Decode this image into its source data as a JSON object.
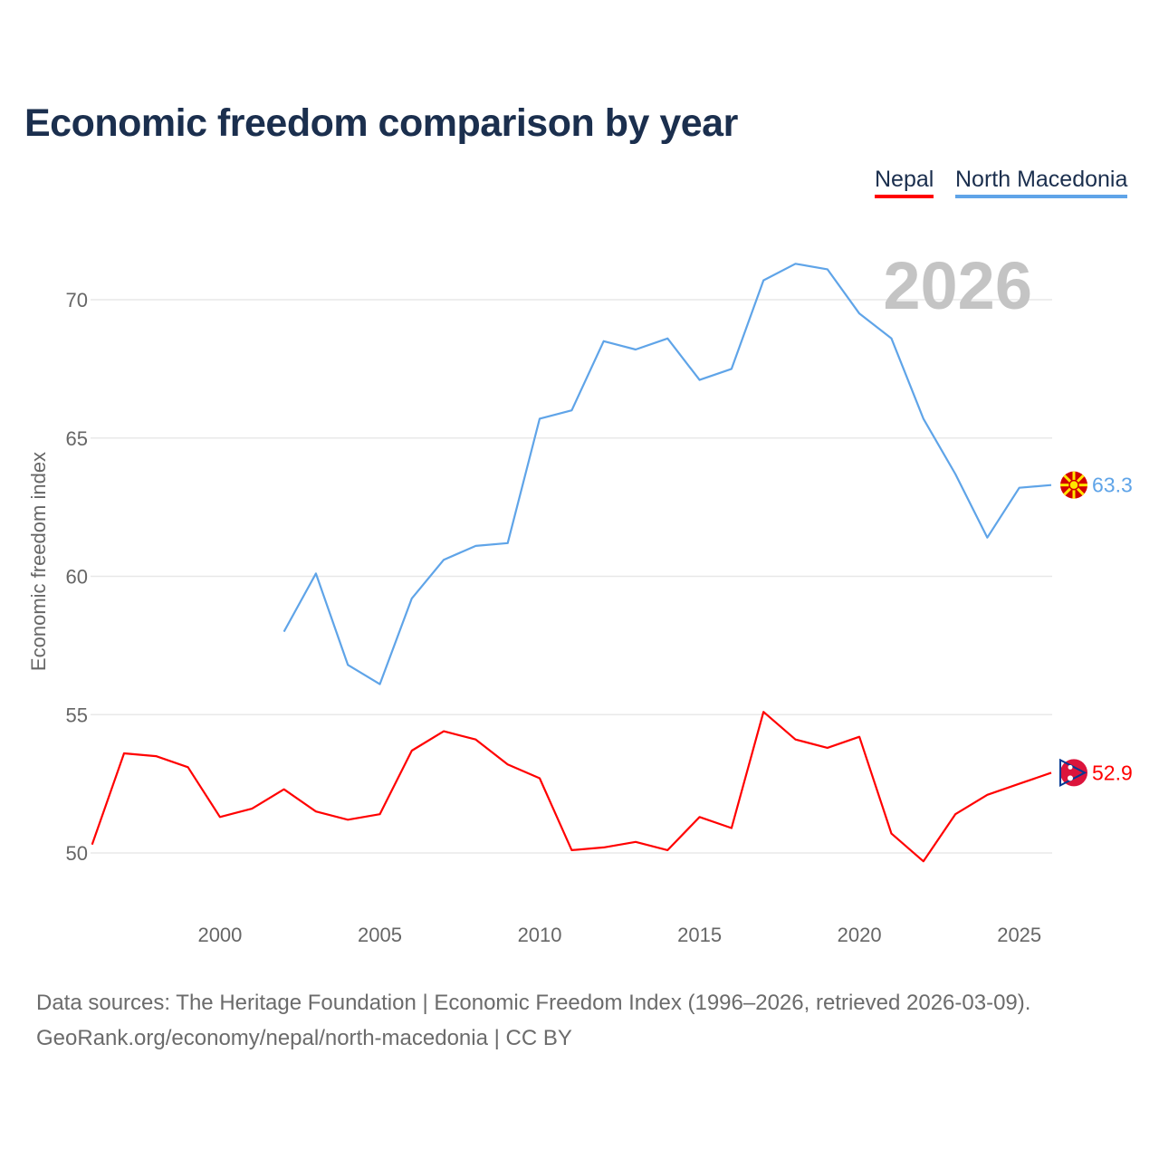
{
  "title": "Economic freedom comparison by year",
  "legend": [
    {
      "name": "Nepal",
      "color": "#ff0000"
    },
    {
      "name": "North Macedonia",
      "color": "#5fa4e8"
    }
  ],
  "footer": {
    "line1": "Data sources: The Heritage Foundation | Economic Freedom Index (1996–2026, retrieved 2026-03-09).",
    "line2": "GeoRank.org/economy/nepal/north-macedonia | CC BY"
  },
  "chart_data": {
    "type": "line",
    "title": "Economic freedom comparison by year",
    "xlabel": "",
    "ylabel": "Economic freedom index",
    "year_watermark": "2026",
    "xlim": [
      1996,
      2026
    ],
    "ylim": [
      47.9,
      72.6
    ],
    "xticks": [
      2000,
      2005,
      2010,
      2015,
      2020,
      2025
    ],
    "yticks": [
      50,
      55,
      60,
      65,
      70
    ],
    "grid": true,
    "legend_position": "top-right",
    "series": [
      {
        "name": "Nepal",
        "color": "#ff0000",
        "end_label": "52.9",
        "flag": "nepal-flag",
        "x": [
          1996,
          1997,
          1998,
          1999,
          2000,
          2001,
          2002,
          2003,
          2004,
          2005,
          2006,
          2007,
          2008,
          2009,
          2010,
          2011,
          2012,
          2013,
          2014,
          2015,
          2016,
          2017,
          2018,
          2019,
          2020,
          2021,
          2022,
          2023,
          2024,
          2025,
          2026
        ],
        "values": [
          50.3,
          53.6,
          53.5,
          53.1,
          51.3,
          51.6,
          52.3,
          51.5,
          51.2,
          51.4,
          53.7,
          54.4,
          54.1,
          53.2,
          52.7,
          50.1,
          50.2,
          50.4,
          50.1,
          51.3,
          50.9,
          55.1,
          54.1,
          53.8,
          54.2,
          50.7,
          49.7,
          51.4,
          52.1,
          52.5,
          52.9
        ]
      },
      {
        "name": "North Macedonia",
        "color": "#5fa4e8",
        "end_label": "63.3",
        "flag": "north-macedonia-flag",
        "x": [
          2002,
          2003,
          2004,
          2005,
          2006,
          2007,
          2008,
          2009,
          2010,
          2011,
          2012,
          2013,
          2014,
          2015,
          2016,
          2017,
          2018,
          2019,
          2020,
          2021,
          2022,
          2023,
          2024,
          2025,
          2026
        ],
        "values": [
          58.0,
          60.1,
          56.8,
          56.1,
          59.2,
          60.6,
          61.1,
          61.2,
          65.7,
          66.0,
          68.5,
          68.2,
          68.6,
          67.1,
          67.5,
          70.7,
          71.3,
          71.1,
          69.5,
          68.6,
          65.7,
          63.7,
          61.4,
          63.2,
          63.3
        ]
      }
    ]
  }
}
